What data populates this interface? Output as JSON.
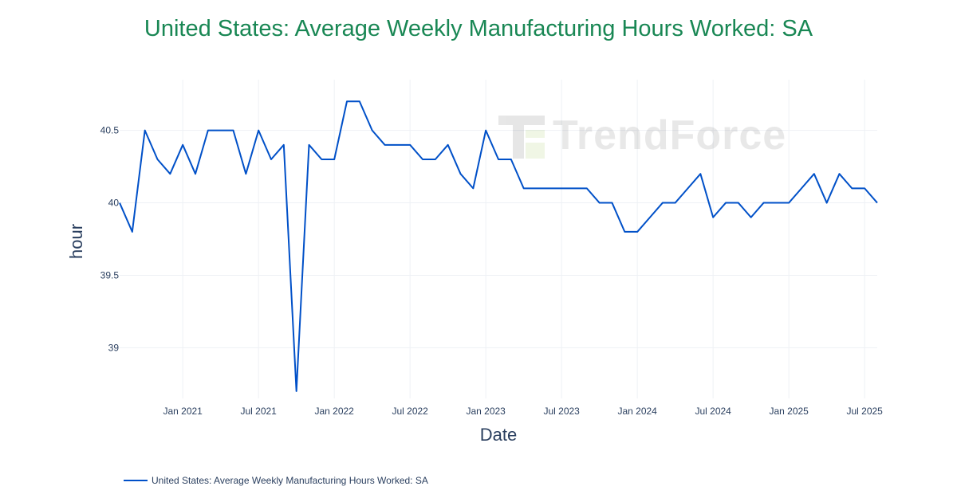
{
  "chart_data": {
    "type": "line",
    "title": "United States: Average Weekly Manufacturing Hours Worked: SA",
    "xlabel": "Date",
    "ylabel": "hour",
    "x_ticks": [
      "Jan 2021",
      "Jul 2021",
      "Jan 2022",
      "Jul 2022",
      "Jan 2023",
      "Jul 2023",
      "Jan 2024",
      "Jul 2024",
      "Jan 2025",
      "Jul 2025"
    ],
    "y_ticks": [
      "39",
      "39.5",
      "40",
      "40.5"
    ],
    "x_range": [
      "2020-08-01",
      "2025-08-01"
    ],
    "ylim": [
      38.65,
      40.85
    ],
    "grid": true,
    "legend_position": "bottom-left",
    "series": [
      {
        "name": "United States: Average Weekly Manufacturing Hours Worked: SA",
        "color": "#0050c8",
        "x": [
          "2020-08",
          "2020-09",
          "2020-10",
          "2020-11",
          "2020-12",
          "2021-01",
          "2021-02",
          "2021-03",
          "2021-04",
          "2021-05",
          "2021-06",
          "2021-07",
          "2021-08",
          "2021-09",
          "2021-10",
          "2021-11",
          "2021-12",
          "2022-01",
          "2022-02",
          "2022-03",
          "2022-04",
          "2022-05",
          "2022-06",
          "2022-07",
          "2022-08",
          "2022-09",
          "2022-10",
          "2022-11",
          "2022-12",
          "2023-01",
          "2023-02",
          "2023-03",
          "2023-04",
          "2023-05",
          "2023-06",
          "2023-07",
          "2023-08",
          "2023-09",
          "2023-10",
          "2023-11",
          "2023-12",
          "2024-01",
          "2024-02",
          "2024-03",
          "2024-04",
          "2024-05",
          "2024-06",
          "2024-07",
          "2024-08",
          "2024-09",
          "2024-10",
          "2024-11",
          "2024-12",
          "2025-01",
          "2025-02",
          "2025-03",
          "2025-04",
          "2025-05",
          "2025-06",
          "2025-07",
          "2025-08"
        ],
        "values": [
          40.0,
          39.8,
          40.5,
          40.3,
          40.2,
          40.4,
          40.2,
          40.5,
          40.5,
          40.5,
          40.2,
          40.5,
          40.3,
          40.4,
          38.7,
          40.4,
          40.3,
          40.3,
          40.7,
          40.7,
          40.5,
          40.4,
          40.4,
          40.4,
          40.3,
          40.3,
          40.4,
          40.2,
          40.1,
          40.5,
          40.3,
          40.3,
          40.1,
          40.1,
          40.1,
          40.1,
          40.1,
          40.1,
          40.0,
          40.0,
          39.8,
          39.8,
          39.9,
          40.0,
          40.0,
          40.1,
          40.2,
          39.9,
          40.0,
          40.0,
          39.9,
          40.0,
          40.0,
          40.0,
          40.1,
          40.2,
          40.0,
          40.2,
          40.1,
          40.1,
          40.0
        ]
      }
    ]
  },
  "watermark": {
    "text": "TrendForce",
    "icon": "trendforce-logo-icon"
  }
}
